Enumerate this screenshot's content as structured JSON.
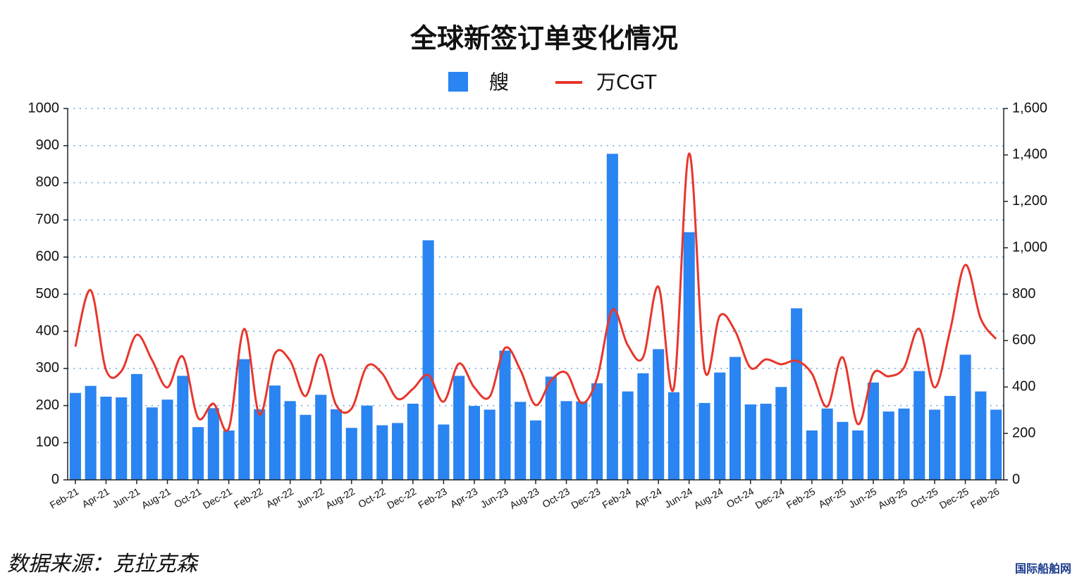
{
  "chart_data": {
    "type": "bar-line",
    "title": "全球新签订单变化情况",
    "categories": [
      "Feb-21",
      null,
      "Apr-21",
      null,
      "Jun-21",
      null,
      "Aug-21",
      null,
      "Oct-21",
      null,
      "Dec-21",
      null,
      "Feb-22",
      null,
      "Apr-22",
      null,
      "Jun-22",
      null,
      "Aug-22",
      null,
      "Oct-22",
      null,
      "Dec-22",
      null,
      "Feb-23",
      null,
      "Apr-23",
      null,
      "Jun-23",
      null,
      "Aug-23",
      null,
      "Oct-23",
      null,
      "Dec-23",
      null,
      "Feb-24",
      null,
      "Apr-24",
      null,
      "Jun-24",
      null,
      "Aug-24",
      null,
      "Oct-24",
      null,
      "Dec-24",
      null,
      "Feb-25",
      null,
      "Apr-25",
      null,
      "Jun-25",
      null,
      "Aug-25",
      null,
      "Oct-25",
      null,
      "Dec-25",
      null,
      "Feb-26"
    ],
    "series": [
      {
        "name": "艘",
        "type": "bar",
        "color": "#2a84f2",
        "axis": "y",
        "values": [
          234,
          253,
          224,
          222,
          285,
          195,
          216,
          280,
          142,
          193,
          133,
          325,
          190,
          254,
          212,
          175,
          229,
          190,
          140,
          200,
          147,
          153,
          205,
          645,
          149,
          280,
          199,
          189,
          348,
          210,
          160,
          278,
          212,
          211,
          260,
          878,
          238,
          287,
          352,
          236,
          667,
          207,
          289,
          331,
          203,
          205,
          250,
          462,
          133,
          192,
          156,
          133,
          262,
          184,
          192,
          293,
          189,
          226,
          337,
          238,
          189
        ]
      },
      {
        "name": "万CGT",
        "type": "line",
        "color": "#e8362c",
        "axis": "y2",
        "values": [
          574,
          817,
          474,
          468,
          625,
          516,
          398,
          531,
          267,
          328,
          222,
          650,
          282,
          543,
          513,
          361,
          540,
          322,
          307,
          489,
          458,
          349,
          392,
          452,
          337,
          501,
          398,
          358,
          568,
          474,
          322,
          428,
          461,
          331,
          437,
          732,
          580,
          528,
          832,
          395,
          1406,
          477,
          707,
          641,
          483,
          519,
          498,
          513,
          458,
          316,
          528,
          240,
          458,
          446,
          483,
          650,
          398,
          641,
          926,
          695,
          607
        ]
      }
    ],
    "ylim": [
      0,
      1000
    ],
    "yticks": [
      0,
      100,
      200,
      300,
      400,
      500,
      600,
      700,
      800,
      900,
      1000
    ],
    "y2lim": [
      0,
      1600
    ],
    "y2ticks": [
      0,
      200,
      400,
      600,
      800,
      {
        "value": 1000,
        "label": "1,000"
      },
      {
        "value": 1200,
        "label": "1,200"
      },
      {
        "value": 1400,
        "label": "1,400"
      },
      {
        "value": 1600,
        "label": "1,600"
      }
    ],
    "grid": true,
    "source": "数据来源：克拉克森",
    "watermark": "国际船舶网"
  }
}
